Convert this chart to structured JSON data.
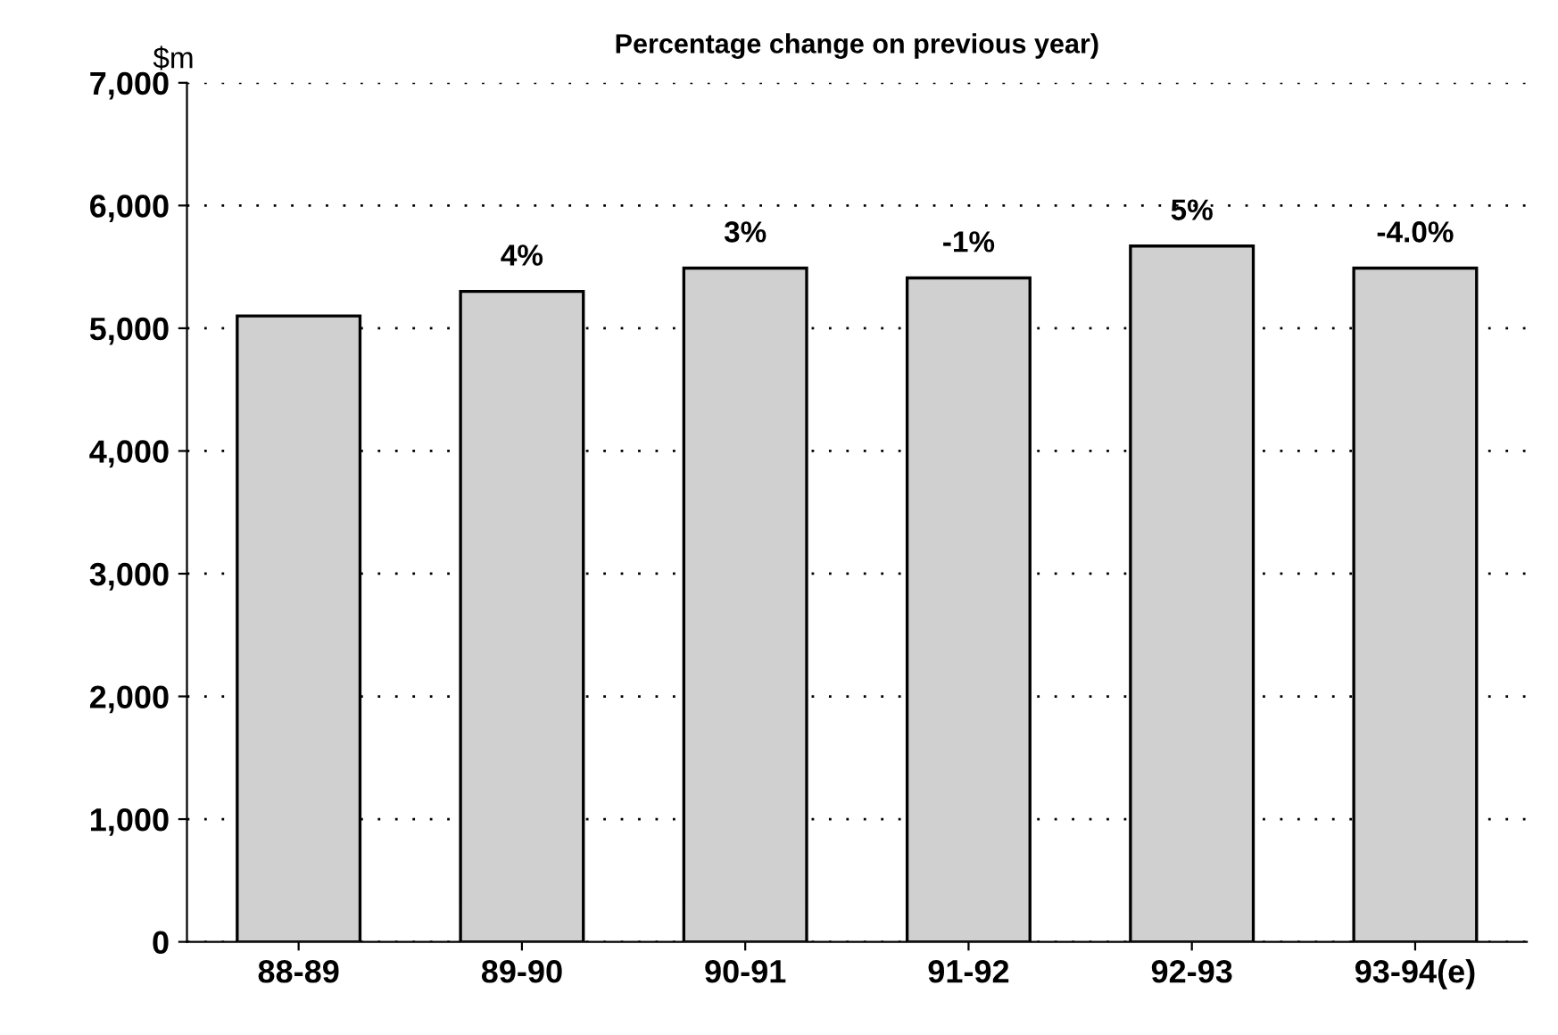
{
  "chart_data": {
    "type": "bar",
    "title": "Percentage change on previous year)",
    "ylabel": "$m",
    "categories": [
      "88-89",
      "89-90",
      "90-91",
      "91-92",
      "92-93",
      "93-94(e)"
    ],
    "values": [
      5100,
      5300,
      5490,
      5410,
      5670,
      5490
    ],
    "color": "#d0d0d0",
    "annotations": [
      {
        "text": "4%",
        "x": "89-90",
        "y": 5300
      },
      {
        "text": "3%",
        "x": "90-91",
        "y": 5490
      },
      {
        "text": "-1%",
        "x": "91-92",
        "y": 5410
      },
      {
        "text": "5%",
        "x": "92-93",
        "y": 5670
      },
      {
        "text": "-4.0%",
        "x": "93-94(e)",
        "y": 5490
      }
    ],
    "ylim": [
      0,
      7000
    ],
    "yticks": [
      0,
      {
        "value": 1000,
        "label": "1,000"
      },
      {
        "value": 2000,
        "label": "2,000"
      },
      {
        "value": 3000,
        "label": "3,000"
      },
      {
        "value": 4000,
        "label": "4,000"
      },
      {
        "value": 5000,
        "label": "5,000"
      },
      {
        "value": 6000,
        "label": "6,000"
      },
      {
        "value": 7000,
        "label": "7,000"
      }
    ],
    "grid": "y"
  }
}
